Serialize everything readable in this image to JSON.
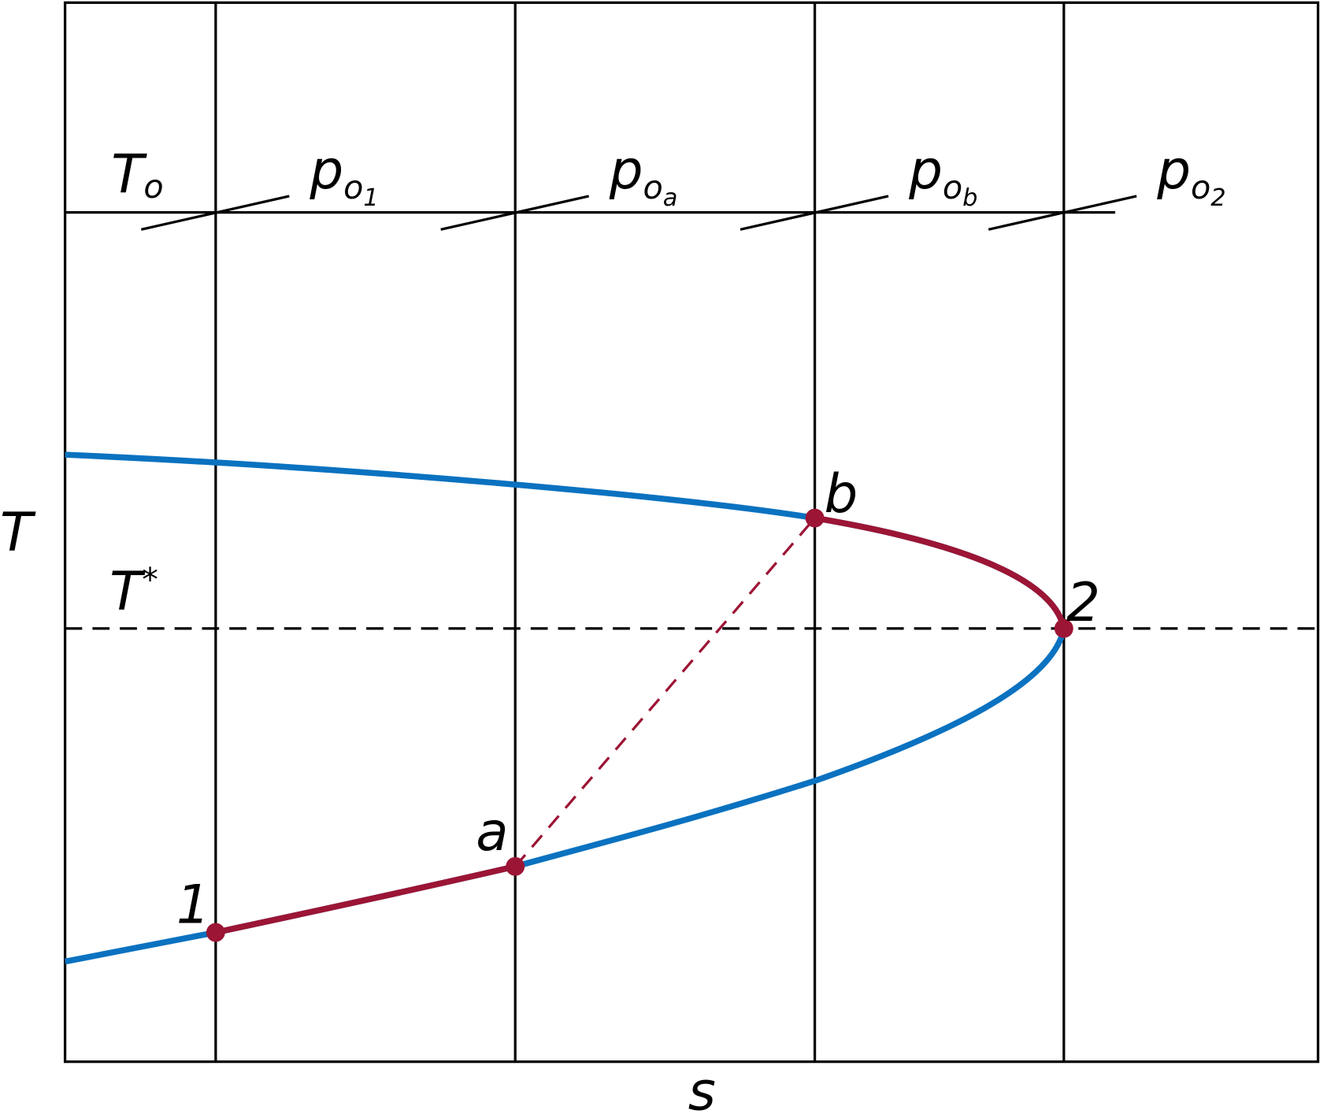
{
  "axes": {
    "y_label": "T",
    "x_label": "s"
  },
  "isotherm": {
    "symbol": "T",
    "subscript": "o"
  },
  "isobars": [
    {
      "symbol": "p",
      "subscript": "o",
      "index": "1"
    },
    {
      "symbol": "p",
      "subscript": "o",
      "index": "a"
    },
    {
      "symbol": "p",
      "subscript": "o",
      "index": "b"
    },
    {
      "symbol": "p",
      "subscript": "o",
      "index": "2"
    }
  ],
  "reference": {
    "symbol": "T",
    "superscript": "*"
  },
  "points": [
    "1",
    "a",
    "b",
    "2"
  ]
}
